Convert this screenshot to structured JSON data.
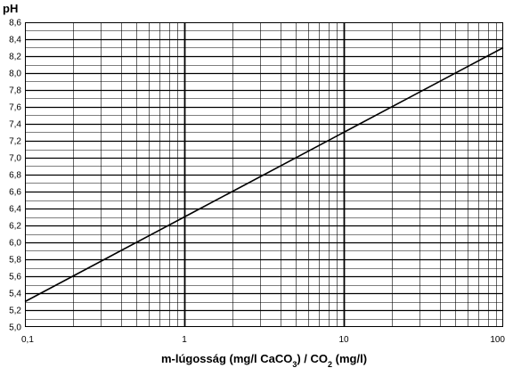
{
  "chart_data": {
    "type": "line",
    "title": "",
    "xlabel": {
      "parts": [
        {
          "text": "m-lúgosság (mg/l CaCO"
        },
        {
          "text": "3",
          "sub": true
        },
        {
          "text": ") / CO"
        },
        {
          "text": "2",
          "sub": true
        },
        {
          "text": " (mg/l)"
        }
      ]
    },
    "ylabel": "pH",
    "x_scale": "log",
    "xlim": [
      0.1,
      100
    ],
    "ylim": [
      5.0,
      8.6
    ],
    "x_tick_values": [
      0.1,
      1,
      10,
      100
    ],
    "x_tick_labels": [
      "0,1",
      "1",
      "10",
      "100"
    ],
    "y_tick_values": [
      5.0,
      5.2,
      5.4,
      5.6,
      5.8,
      6.0,
      6.2,
      6.4,
      6.6,
      6.8,
      7.0,
      7.2,
      7.4,
      7.6,
      7.8,
      8.0,
      8.2,
      8.4,
      8.6
    ],
    "y_tick_labels": [
      "5,0",
      "5,2",
      "5,4",
      "5,6",
      "5,8",
      "6,0",
      "6,2",
      "6,4",
      "6,6",
      "6,8",
      "7,0",
      "7,2",
      "7,4",
      "7,6",
      "7,8",
      "8,0",
      "8,2",
      "8,4",
      "8,6"
    ],
    "grid": true,
    "series": [
      {
        "x": [
          0.1,
          1,
          10,
          100
        ],
        "y": [
          5.3,
          6.3,
          7.3,
          8.3
        ]
      }
    ]
  }
}
